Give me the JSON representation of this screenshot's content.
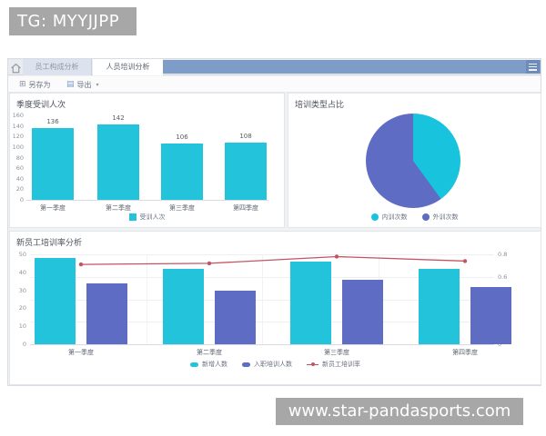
{
  "banners": {
    "tg": "TG: MYYJJPP",
    "site": "www.star-pandasports.com"
  },
  "tabs": {
    "items": [
      {
        "label": "员工构成分析",
        "active": false
      },
      {
        "label": "人员培训分析",
        "active": true
      }
    ]
  },
  "toolbar": {
    "save_as": "另存为",
    "export": "导出"
  },
  "icons": {
    "home": "home-icon",
    "menu": "hamburger-icon",
    "caret_down": "▾",
    "save_grid": "⊞",
    "export_doc": "▤"
  },
  "colors": {
    "banner_gray": "#a7a7a7",
    "header_blue": "#7e9cc8",
    "cyan": "#23c3dc",
    "purple": "#5e6cc3",
    "red": "#c25563",
    "dashboard_bg": "#f0f2f4"
  },
  "chart_data": [
    {
      "type": "bar",
      "title": "季度受训人次",
      "categories": [
        "第一季度",
        "第二季度",
        "第三季度",
        "第四季度"
      ],
      "series": [
        {
          "name": "受训人次",
          "color": "#23c3dc",
          "values": [
            136,
            142,
            106,
            108
          ]
        }
      ],
      "ylim": [
        0,
        160
      ],
      "ytick": 20,
      "value_labels": true,
      "legend_position": "bottom"
    },
    {
      "type": "pie",
      "title": "培训类型占比",
      "slices": [
        {
          "name": "内训次数",
          "color": "#18c4dd",
          "percent": 40
        },
        {
          "name": "外训次数",
          "color": "#5e6cc3",
          "percent": 60
        }
      ],
      "legend_position": "bottom"
    },
    {
      "type": "bar+line",
      "title": "新员工培训率分析",
      "categories": [
        "第一季度",
        "第二季度",
        "第三季度",
        "第四季度"
      ],
      "bar_series": [
        {
          "name": "新增人数",
          "color": "#23c3dc",
          "values": [
            48,
            42,
            46,
            42
          ]
        },
        {
          "name": "入职培训人数",
          "color": "#5e6cc3",
          "values": [
            34,
            30,
            36,
            32
          ]
        }
      ],
      "line_series": {
        "name": "新员工培训率",
        "color": "#c25563",
        "axis": "right",
        "values": [
          0.71,
          0.72,
          0.78,
          0.74
        ]
      },
      "ylim_left": [
        0,
        50
      ],
      "ytick_left": 10,
      "ylim_right": [
        0,
        0.8
      ],
      "ytick_right": 0.2,
      "grid": true,
      "legend_position": "bottom"
    }
  ]
}
